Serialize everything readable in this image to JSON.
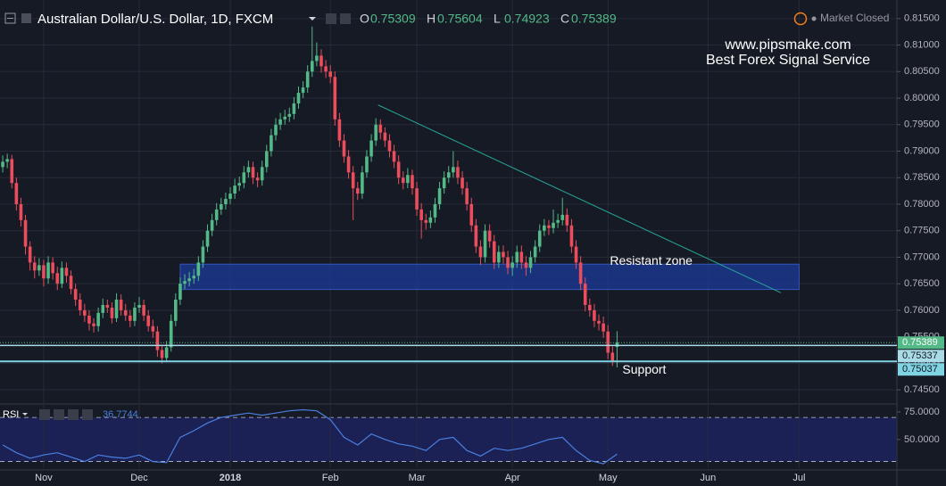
{
  "chart_data": {
    "type": "candlestick",
    "title": "Australian Dollar/U.S. Dollar, 1D, FXCM",
    "ohlc_labels": [
      "O",
      "H",
      "L",
      "C"
    ],
    "status": "Market Closed",
    "watermark": [
      "www.pipsmake.com",
      "Best Forex Signal Service"
    ],
    "colors": {
      "up": "#53b987",
      "down": "#eb4d5c",
      "last": "#53b987"
    },
    "candles": [
      [
        0.787,
        0.7892,
        0.786,
        0.788
      ],
      [
        0.788,
        0.7895,
        0.7868,
        0.7885
      ],
      [
        0.7885,
        0.7893,
        0.783,
        0.784
      ],
      [
        0.784,
        0.785,
        0.7788,
        0.78
      ],
      [
        0.78,
        0.7812,
        0.7758,
        0.777
      ],
      [
        0.777,
        0.778,
        0.7705,
        0.772
      ],
      [
        0.772,
        0.773,
        0.7675,
        0.769
      ],
      [
        0.769,
        0.7702,
        0.766,
        0.7675
      ],
      [
        0.7675,
        0.7698,
        0.7665,
        0.7685
      ],
      [
        0.7685,
        0.7695,
        0.7645,
        0.766
      ],
      [
        0.766,
        0.7702,
        0.765,
        0.769
      ],
      [
        0.769,
        0.77,
        0.7658,
        0.767
      ],
      [
        0.767,
        0.7682,
        0.7638,
        0.765
      ],
      [
        0.765,
        0.7692,
        0.7642,
        0.768
      ],
      [
        0.768,
        0.769,
        0.7652,
        0.7665
      ],
      [
        0.7665,
        0.7675,
        0.763,
        0.764
      ],
      [
        0.764,
        0.765,
        0.7608,
        0.762
      ],
      [
        0.762,
        0.7632,
        0.759,
        0.76
      ],
      [
        0.76,
        0.7612,
        0.7578,
        0.759
      ],
      [
        0.759,
        0.76,
        0.7562,
        0.7575
      ],
      [
        0.7575,
        0.7585,
        0.7558,
        0.757
      ],
      [
        0.757,
        0.7605,
        0.756,
        0.7595
      ],
      [
        0.7595,
        0.7622,
        0.7585,
        0.761
      ],
      [
        0.761,
        0.762,
        0.7595,
        0.7605
      ],
      [
        0.7605,
        0.7615,
        0.7575,
        0.7585
      ],
      [
        0.7585,
        0.7632,
        0.7578,
        0.762
      ],
      [
        0.762,
        0.763,
        0.759,
        0.76
      ],
      [
        0.76,
        0.7612,
        0.758,
        0.759
      ],
      [
        0.759,
        0.76,
        0.7568,
        0.758
      ],
      [
        0.758,
        0.7615,
        0.757,
        0.7605
      ],
      [
        0.7605,
        0.7625,
        0.7595,
        0.761
      ],
      [
        0.761,
        0.762,
        0.758,
        0.759
      ],
      [
        0.759,
        0.76,
        0.756,
        0.757
      ],
      [
        0.757,
        0.7582,
        0.7548,
        0.756
      ],
      [
        0.756,
        0.757,
        0.7512,
        0.7525
      ],
      [
        0.7525,
        0.7535,
        0.75,
        0.751
      ],
      [
        0.751,
        0.7542,
        0.7502,
        0.753
      ],
      [
        0.753,
        0.7592,
        0.7522,
        0.758
      ],
      [
        0.758,
        0.7632,
        0.757,
        0.762
      ],
      [
        0.762,
        0.7662,
        0.761,
        0.765
      ],
      [
        0.765,
        0.7668,
        0.764,
        0.7655
      ],
      [
        0.7655,
        0.7672,
        0.7645,
        0.766
      ],
      [
        0.766,
        0.7678,
        0.765,
        0.7665
      ],
      [
        0.7665,
        0.7702,
        0.7655,
        0.769
      ],
      [
        0.769,
        0.7732,
        0.768,
        0.772
      ],
      [
        0.772,
        0.7762,
        0.771,
        0.775
      ],
      [
        0.775,
        0.7782,
        0.774,
        0.777
      ],
      [
        0.777,
        0.7802,
        0.776,
        0.779
      ],
      [
        0.779,
        0.7812,
        0.778,
        0.78
      ],
      [
        0.78,
        0.7822,
        0.779,
        0.781
      ],
      [
        0.781,
        0.7832,
        0.78,
        0.782
      ],
      [
        0.782,
        0.7848,
        0.781,
        0.7835
      ],
      [
        0.7835,
        0.7852,
        0.7825,
        0.784
      ],
      [
        0.784,
        0.7872,
        0.783,
        0.786
      ],
      [
        0.786,
        0.7882,
        0.785,
        0.787
      ],
      [
        0.787,
        0.788,
        0.7838,
        0.785
      ],
      [
        0.785,
        0.786,
        0.7832,
        0.7845
      ],
      [
        0.7845,
        0.7882,
        0.7835,
        0.787
      ],
      [
        0.787,
        0.7912,
        0.786,
        0.79
      ],
      [
        0.79,
        0.7942,
        0.789,
        0.793
      ],
      [
        0.793,
        0.7962,
        0.792,
        0.795
      ],
      [
        0.795,
        0.7972,
        0.794,
        0.796
      ],
      [
        0.796,
        0.7978,
        0.795,
        0.7965
      ],
      [
        0.7965,
        0.7982,
        0.7955,
        0.797
      ],
      [
        0.797,
        0.8002,
        0.796,
        0.799
      ],
      [
        0.799,
        0.8022,
        0.798,
        0.801
      ],
      [
        0.801,
        0.8032,
        0.8,
        0.802
      ],
      [
        0.802,
        0.8062,
        0.801,
        0.805
      ],
      [
        0.805,
        0.8135,
        0.804,
        0.807
      ],
      [
        0.807,
        0.8105,
        0.806,
        0.808
      ],
      [
        0.808,
        0.8092,
        0.8048,
        0.806
      ],
      [
        0.806,
        0.8072,
        0.8038,
        0.805
      ],
      [
        0.805,
        0.8062,
        0.8028,
        0.804
      ],
      [
        0.804,
        0.805,
        0.7948,
        0.796
      ],
      [
        0.796,
        0.7972,
        0.7908,
        0.792
      ],
      [
        0.792,
        0.7932,
        0.7878,
        0.789
      ],
      [
        0.789,
        0.7902,
        0.7848,
        0.786
      ],
      [
        0.786,
        0.7872,
        0.777,
        0.783
      ],
      [
        0.783,
        0.7842,
        0.7808,
        0.782
      ],
      [
        0.782,
        0.7872,
        0.781,
        0.786
      ],
      [
        0.786,
        0.7902,
        0.785,
        0.789
      ],
      [
        0.789,
        0.7932,
        0.788,
        0.792
      ],
      [
        0.792,
        0.7962,
        0.791,
        0.795
      ],
      [
        0.795,
        0.796,
        0.7922,
        0.7935
      ],
      [
        0.7935,
        0.7945,
        0.7908,
        0.792
      ],
      [
        0.792,
        0.7932,
        0.7888,
        0.79
      ],
      [
        0.79,
        0.7912,
        0.7868,
        0.788
      ],
      [
        0.788,
        0.7892,
        0.7838,
        0.785
      ],
      [
        0.785,
        0.7862,
        0.7828,
        0.784
      ],
      [
        0.784,
        0.7868,
        0.783,
        0.7855
      ],
      [
        0.7855,
        0.7865,
        0.7818,
        0.783
      ],
      [
        0.783,
        0.7842,
        0.7778,
        0.779
      ],
      [
        0.779,
        0.7802,
        0.7735,
        0.777
      ],
      [
        0.777,
        0.7782,
        0.7752,
        0.7765
      ],
      [
        0.7765,
        0.7788,
        0.7755,
        0.7775
      ],
      [
        0.7775,
        0.7812,
        0.7765,
        0.78
      ],
      [
        0.78,
        0.7842,
        0.779,
        0.783
      ],
      [
        0.783,
        0.7862,
        0.782,
        0.785
      ],
      [
        0.785,
        0.7872,
        0.784,
        0.786
      ],
      [
        0.786,
        0.79,
        0.785,
        0.787
      ],
      [
        0.787,
        0.7882,
        0.7838,
        0.785
      ],
      [
        0.785,
        0.7862,
        0.7818,
        0.783
      ],
      [
        0.783,
        0.7842,
        0.7788,
        0.78
      ],
      [
        0.78,
        0.7812,
        0.7748,
        0.776
      ],
      [
        0.776,
        0.7772,
        0.7708,
        0.772
      ],
      [
        0.772,
        0.7732,
        0.7685,
        0.77
      ],
      [
        0.77,
        0.7762,
        0.769,
        0.775
      ],
      [
        0.775,
        0.7762,
        0.7718,
        0.773
      ],
      [
        0.773,
        0.7742,
        0.7678,
        0.769
      ],
      [
        0.769,
        0.7722,
        0.768,
        0.771
      ],
      [
        0.771,
        0.7722,
        0.7688,
        0.77
      ],
      [
        0.77,
        0.7712,
        0.7668,
        0.768
      ],
      [
        0.768,
        0.7702,
        0.7665,
        0.769
      ],
      [
        0.769,
        0.7722,
        0.768,
        0.771
      ],
      [
        0.771,
        0.7722,
        0.7678,
        0.769
      ],
      [
        0.769,
        0.7702,
        0.7665,
        0.768
      ],
      [
        0.768,
        0.7712,
        0.767,
        0.77
      ],
      [
        0.77,
        0.7732,
        0.769,
        0.772
      ],
      [
        0.772,
        0.7762,
        0.771,
        0.775
      ],
      [
        0.775,
        0.7772,
        0.774,
        0.776
      ],
      [
        0.776,
        0.777,
        0.7742,
        0.7755
      ],
      [
        0.7755,
        0.779,
        0.7745,
        0.7765
      ],
      [
        0.7765,
        0.7782,
        0.7755,
        0.777
      ],
      [
        0.777,
        0.7812,
        0.776,
        0.778
      ],
      [
        0.778,
        0.7792,
        0.7748,
        0.776
      ],
      [
        0.776,
        0.7772,
        0.7708,
        0.772
      ],
      [
        0.772,
        0.7732,
        0.7678,
        0.769
      ],
      [
        0.769,
        0.7702,
        0.7638,
        0.765
      ],
      [
        0.765,
        0.7662,
        0.7598,
        0.761
      ],
      [
        0.761,
        0.7622,
        0.7588,
        0.76
      ],
      [
        0.76,
        0.7612,
        0.7568,
        0.758
      ],
      [
        0.758,
        0.7592,
        0.7562,
        0.7575
      ],
      [
        0.7575,
        0.7588,
        0.7548,
        0.756
      ],
      [
        0.756,
        0.7572,
        0.7508,
        0.752
      ],
      [
        0.752,
        0.7532,
        0.7495,
        0.7505
      ],
      [
        0.75309,
        0.75604,
        0.74923,
        0.75389
      ]
    ],
    "xlim": [
      -0.6,
      196.5
    ],
    "xticks": [
      {
        "value": 9,
        "label": "Nov"
      },
      {
        "value": 30,
        "label": "Dec"
      },
      {
        "value": 50,
        "label": "2018"
      },
      {
        "value": 72,
        "label": "Feb"
      },
      {
        "value": 91,
        "label": "Mar"
      },
      {
        "value": 112,
        "label": "Apr"
      },
      {
        "value": 133,
        "label": "May"
      },
      {
        "value": 155,
        "label": "Jun"
      },
      {
        "value": 175,
        "label": "Jul"
      }
    ],
    "ylim": [
      0.7425,
      0.8185
    ],
    "yticks": [
      {
        "value": 0.815,
        "label": "0.81500"
      },
      {
        "value": 0.81,
        "label": "0.81000"
      },
      {
        "value": 0.805,
        "label": "0.80500"
      },
      {
        "value": 0.8,
        "label": "0.80000"
      },
      {
        "value": 0.795,
        "label": "0.79500"
      },
      {
        "value": 0.79,
        "label": "0.79000"
      },
      {
        "value": 0.785,
        "label": "0.78500"
      },
      {
        "value": 0.78,
        "label": "0.78000"
      },
      {
        "value": 0.775,
        "label": "0.77500"
      },
      {
        "value": 0.77,
        "label": "0.77000"
      },
      {
        "value": 0.765,
        "label": "0.76500"
      },
      {
        "value": 0.76,
        "label": "0.76000"
      },
      {
        "value": 0.755,
        "label": "0.75500"
      },
      {
        "value": 0.75,
        "label": "0.75000"
      },
      {
        "value": 0.745,
        "label": "0.74500"
      }
    ],
    "grid": true,
    "levels": [
      {
        "value": 0.75337,
        "color": "#a9dbe6"
      },
      {
        "value": 0.75037,
        "color": "#7fd3e3",
        "label": "Support"
      }
    ],
    "zone": {
      "label": "Resistant zone",
      "x": [
        39,
        175
      ],
      "y": [
        0.7639,
        0.7687
      ],
      "color": "#1c3b9a"
    },
    "trendline": {
      "x": [
        82.5,
        171
      ],
      "y": [
        0.7987,
        0.7633
      ],
      "color": "#26a69a"
    },
    "rsi": {
      "name": "RSI",
      "color": "#4a7fe0",
      "x": [
        0,
        3,
        6,
        9,
        12,
        15,
        18,
        21,
        24,
        27,
        30,
        33,
        36,
        39,
        42,
        45,
        48,
        51,
        54,
        57,
        60,
        63,
        66,
        69,
        72,
        75,
        78,
        81,
        84,
        87,
        90,
        93,
        96,
        99,
        102,
        105,
        108,
        111,
        114,
        117,
        120,
        123,
        126,
        129,
        132,
        135
      ],
      "values": [
        45,
        38,
        33,
        36,
        38,
        34,
        30,
        36,
        34,
        33,
        36,
        30,
        29,
        52,
        58,
        65,
        70,
        72,
        74,
        72,
        74,
        76,
        77,
        76,
        68,
        52,
        45,
        55,
        50,
        46,
        44,
        40,
        50,
        52,
        40,
        35,
        42,
        40,
        42,
        46,
        50,
        52,
        40,
        31,
        28,
        36.7744
      ],
      "ylim": [
        24,
        80.6
      ],
      "yticks": [
        {
          "value": 75,
          "label": "75.0000"
        },
        {
          "value": 50,
          "label": "50.0000"
        }
      ],
      "bands": [
        70,
        30
      ]
    }
  }
}
